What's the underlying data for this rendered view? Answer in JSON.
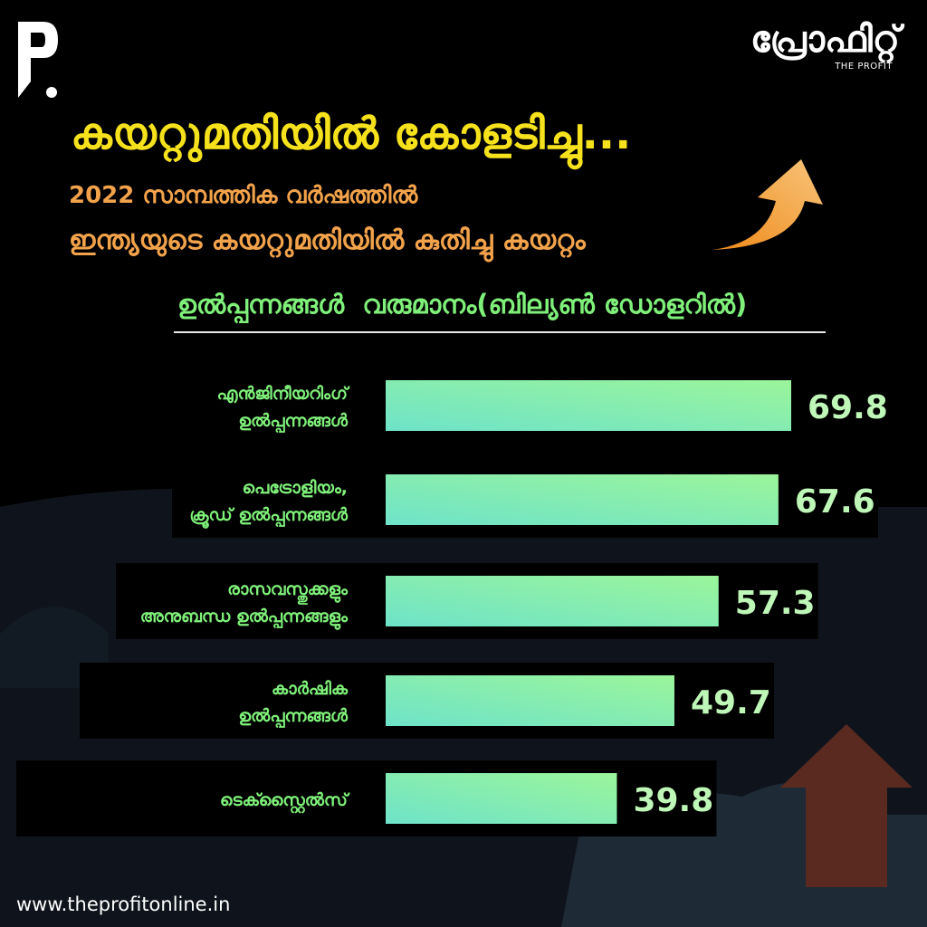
{
  "brand": {
    "name": "പ്രോഫിറ്റ്",
    "tagline": "THE PROFIT"
  },
  "title": "കയറ്റുമതിയിൽ കോളടിച്ചു...",
  "subtitle_line1": "2022 സാമ്പത്തിക വർഷത്തിൽ",
  "subtitle_line2": "ഇന്ത്യയുടെ കയറ്റുമതിയിൽ കുതിച്ചു കയറ്റം",
  "header_text": "ഉൽപ്പന്നങ്ങൾ  വരുമാനം(ബില്യൺ ഡോളറിൽ)",
  "website": "www.theprofitonline.in",
  "colors": {
    "title": "#f6e21c",
    "subtitle": "#f2a24a",
    "label": "#7ff07a",
    "bar_start": "#6ee3c9",
    "bar_end": "#9bf59a",
    "value": "#bff7b8",
    "background": "#000000"
  },
  "chart_data": {
    "type": "bar",
    "orientation": "horizontal",
    "categories": [
      [
        "എൻജിനീയറിംഗ്",
        "ഉൽപ്പന്നങ്ങൾ"
      ],
      [
        "പെട്രോളിയം,",
        "ക്രൂഡ് ഉൽപ്പന്നങ്ങൾ"
      ],
      [
        "രാസവസ്തുക്കളും",
        "അനുബന്ധ ഉൽപ്പന്നങ്ങളും"
      ],
      [
        "കാർഷിക",
        "ഉൽപ്പന്നങ്ങൾ"
      ],
      [
        "ടെക്സ്റ്റൈൽസ്"
      ]
    ],
    "values": [
      69.8,
      67.6,
      57.3,
      49.7,
      39.8
    ],
    "value_labels": [
      "69.8",
      "67.6",
      "57.3",
      "49.7",
      "39.8"
    ],
    "xlim": [
      0,
      69.8
    ],
    "grid": false,
    "legend": "none"
  }
}
